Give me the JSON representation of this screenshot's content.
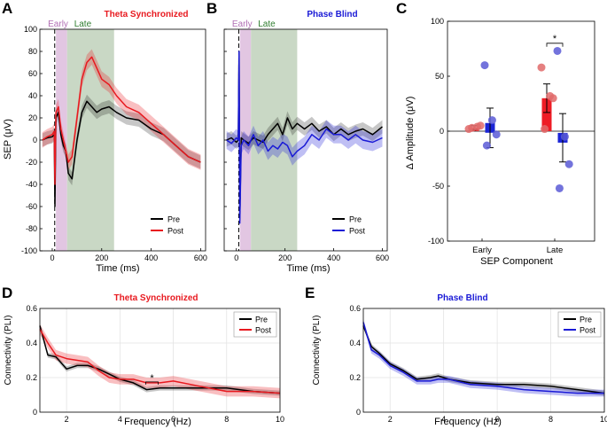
{
  "figure": {
    "panel_letters": [
      "A",
      "B",
      "C",
      "D",
      "E"
    ],
    "colors": {
      "pre": "#000000",
      "theta": "#e8191f",
      "phase": "#1a1ad6",
      "early_shade": "#e2c6e2",
      "late_shade": "#c9d8c5",
      "early_text": "#b16fb4",
      "late_text": "#2f7d2f",
      "bar_red": "#ee1c25",
      "bar_blue": "#1a24d6",
      "dot_red": "#e06a6a",
      "dot_blue": "#5a5ad6"
    }
  },
  "chart_data": [
    {
      "id": "A",
      "type": "line",
      "title": "Theta Synchronized",
      "xlabel": "Time (ms)",
      "ylabel": "SEP (μV)",
      "xlim": [
        -50,
        620
      ],
      "ylim": [
        -100,
        100
      ],
      "xticks": [
        0,
        200,
        400,
        600
      ],
      "yticks": [
        -100,
        -80,
        -60,
        -40,
        -20,
        0,
        20,
        40,
        60,
        80,
        100
      ],
      "windows": [
        {
          "label": "Early",
          "from": 15,
          "to": 60
        },
        {
          "label": "Late",
          "from": 60,
          "to": 250
        }
      ],
      "stim_marker": 10,
      "legend": [
        "Pre",
        "Post"
      ],
      "legend_position": "bottom-right",
      "series": [
        {
          "name": "Pre",
          "x": [
            -40,
            -20,
            0,
            8,
            11,
            15,
            25,
            35,
            45,
            55,
            65,
            80,
            100,
            120,
            140,
            160,
            180,
            200,
            230,
            260,
            300,
            350,
            400,
            450,
            500,
            550,
            600
          ],
          "y": [
            0,
            2,
            3,
            5,
            -60,
            20,
            25,
            5,
            -5,
            -10,
            -30,
            -35,
            0,
            25,
            35,
            30,
            25,
            28,
            30,
            25,
            20,
            18,
            10,
            5,
            -5,
            -15,
            -20
          ],
          "band": 6
        },
        {
          "name": "Post",
          "x": [
            -40,
            -20,
            0,
            8,
            11,
            15,
            25,
            35,
            45,
            55,
            65,
            80,
            100,
            120,
            140,
            160,
            180,
            200,
            230,
            260,
            300,
            350,
            400,
            450,
            500,
            550,
            600
          ],
          "y": [
            0,
            3,
            5,
            8,
            -40,
            25,
            30,
            10,
            0,
            -10,
            -20,
            -15,
            20,
            55,
            70,
            75,
            65,
            55,
            50,
            40,
            30,
            25,
            15,
            5,
            -5,
            -15,
            -20
          ],
          "band": 7
        }
      ]
    },
    {
      "id": "B",
      "type": "line",
      "title": "Phase Blind",
      "xlabel": "Time (ms)",
      "xlim": [
        -50,
        620
      ],
      "ylim": [
        -100,
        100
      ],
      "xticks": [
        0,
        200,
        400,
        600
      ],
      "windows": [
        {
          "label": "Early",
          "from": 15,
          "to": 60
        },
        {
          "label": "Late",
          "from": 60,
          "to": 250
        }
      ],
      "stim_marker": 10,
      "legend": [
        "Pre",
        "Post"
      ],
      "legend_position": "bottom-right",
      "series": [
        {
          "name": "Pre",
          "x": [
            -40,
            -20,
            0,
            8,
            11,
            14,
            20,
            30,
            50,
            70,
            90,
            110,
            130,
            150,
            170,
            190,
            210,
            230,
            250,
            280,
            310,
            340,
            370,
            400,
            430,
            460,
            490,
            520,
            560,
            600
          ],
          "y": [
            0,
            2,
            -2,
            0,
            80,
            -70,
            2,
            0,
            -3,
            2,
            0,
            -2,
            5,
            10,
            15,
            5,
            20,
            10,
            15,
            10,
            15,
            8,
            12,
            5,
            10,
            5,
            8,
            10,
            5,
            12
          ],
          "band": 6
        },
        {
          "name": "Post",
          "x": [
            -40,
            -20,
            0,
            8,
            11,
            14,
            20,
            30,
            50,
            70,
            90,
            110,
            130,
            150,
            170,
            190,
            210,
            230,
            250,
            280,
            310,
            340,
            370,
            400,
            430,
            460,
            490,
            520,
            560,
            600
          ],
          "y": [
            0,
            -3,
            2,
            0,
            80,
            -75,
            -5,
            0,
            -5,
            5,
            -5,
            0,
            -10,
            -5,
            -8,
            -2,
            -5,
            -15,
            -10,
            -5,
            5,
            0,
            10,
            5,
            5,
            0,
            5,
            0,
            -2,
            2
          ],
          "band": 8
        }
      ]
    },
    {
      "id": "C",
      "type": "bar",
      "title": "",
      "xlabel": "SEP Component",
      "ylabel": "Δ Amplitude (μV)",
      "ylim": [
        -100,
        100
      ],
      "yticks": [
        -100,
        -50,
        0,
        50,
        100
      ],
      "categories": [
        "Early",
        "Late"
      ],
      "series": [
        {
          "name": "Theta Synchronized",
          "values": [
            3,
            30
          ],
          "err": [
            2,
            13
          ],
          "points": [
            [
              2,
              4,
              5,
              3
            ],
            [
              58,
              32,
              30,
              2
            ]
          ]
        },
        {
          "name": "Phase Blind",
          "values": [
            3,
            -6
          ],
          "err": [
            18,
            22
          ],
          "points": [
            [
              60,
              10,
              -3,
              -13
            ],
            [
              73,
              -5,
              -30,
              -52
            ]
          ]
        }
      ],
      "annotations": [
        {
          "text": "*",
          "between": "Late"
        }
      ]
    },
    {
      "id": "D",
      "type": "line",
      "title": "Theta Synchronized",
      "xlabel": "Frequency (Hz)",
      "ylabel": "Connectivity (PLI)",
      "xlim": [
        1,
        10
      ],
      "ylim": [
        0,
        0.6
      ],
      "xticks": [
        2,
        4,
        6,
        8,
        10
      ],
      "yticks": [
        0,
        0.2,
        0.4,
        0.6
      ],
      "legend": [
        "Pre",
        "Post"
      ],
      "legend_position": "top-right",
      "annotations": [
        {
          "text": "*",
          "x": 5.2
        }
      ],
      "series": [
        {
          "name": "Pre",
          "x": [
            1,
            1.3,
            1.6,
            2,
            2.4,
            2.8,
            3.2,
            3.6,
            4,
            4.5,
            5,
            5.5,
            6,
            7,
            8,
            9,
            10
          ],
          "y": [
            0.5,
            0.33,
            0.32,
            0.25,
            0.27,
            0.27,
            0.25,
            0.22,
            0.19,
            0.17,
            0.13,
            0.14,
            0.14,
            0.14,
            0.14,
            0.12,
            0.11
          ],
          "band": 0.015
        },
        {
          "name": "Post",
          "x": [
            1,
            1.3,
            1.6,
            2,
            2.4,
            2.8,
            3.2,
            3.6,
            4,
            4.5,
            5,
            5.5,
            6,
            7,
            8,
            9,
            10
          ],
          "y": [
            0.48,
            0.4,
            0.33,
            0.31,
            0.3,
            0.29,
            0.24,
            0.2,
            0.19,
            0.19,
            0.17,
            0.17,
            0.18,
            0.15,
            0.12,
            0.12,
            0.11
          ],
          "band": 0.03
        }
      ]
    },
    {
      "id": "E",
      "type": "line",
      "title": "Phase Blind",
      "xlabel": "Frequency (Hz)",
      "ylabel": "Connectivity (PLI)",
      "xlim": [
        1,
        10
      ],
      "ylim": [
        0,
        0.6
      ],
      "xticks": [
        2,
        4,
        6,
        8,
        10
      ],
      "yticks": [
        0,
        0.2,
        0.4,
        0.6
      ],
      "legend": [
        "Pre",
        "Post"
      ],
      "legend_position": "top-right",
      "series": [
        {
          "name": "Pre",
          "x": [
            1,
            1.3,
            1.6,
            2,
            2.5,
            3,
            3.5,
            3.8,
            4.2,
            5,
            6,
            7,
            8,
            9,
            10
          ],
          "y": [
            0.5,
            0.38,
            0.34,
            0.28,
            0.24,
            0.19,
            0.2,
            0.21,
            0.19,
            0.17,
            0.16,
            0.16,
            0.15,
            0.13,
            0.11
          ],
          "band": 0.015
        },
        {
          "name": "Post",
          "x": [
            1,
            1.3,
            1.6,
            2,
            2.5,
            3,
            3.5,
            3.8,
            4.2,
            5,
            6,
            7,
            8,
            9,
            10
          ],
          "y": [
            0.52,
            0.36,
            0.33,
            0.27,
            0.23,
            0.18,
            0.18,
            0.19,
            0.19,
            0.16,
            0.15,
            0.13,
            0.12,
            0.11,
            0.11
          ],
          "band": 0.02
        }
      ]
    }
  ]
}
